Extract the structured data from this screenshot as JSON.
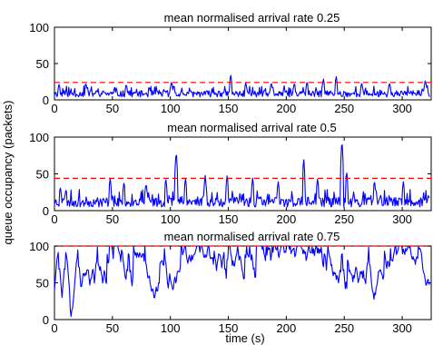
{
  "chart_data": [
    {
      "type": "line",
      "title": "mean normalised arrival rate 0.25",
      "xlabel": "",
      "ylabel": "",
      "xlim": [
        0,
        325
      ],
      "ylim": [
        0,
        100
      ],
      "xticks": [
        0,
        50,
        100,
        150,
        200,
        250,
        300
      ],
      "yticks": [
        0,
        50,
        100
      ],
      "series": [
        {
          "color": "#0000ff",
          "style": "noisy-queue-trace",
          "baseline": 4,
          "spread": 11,
          "sample_step": 0.65,
          "seed": 11,
          "spikes": [
            [
              4,
              22
            ],
            [
              27,
              24
            ],
            [
              62,
              22
            ],
            [
              101,
              26
            ],
            [
              103,
              21
            ],
            [
              152,
              35
            ],
            [
              165,
              24
            ],
            [
              187,
              24
            ],
            [
              207,
              24
            ],
            [
              218,
              26
            ],
            [
              232,
              29
            ],
            [
              243,
              33
            ],
            [
              265,
              24
            ],
            [
              289,
              24
            ],
            [
              320,
              28
            ]
          ]
        }
      ],
      "reference_line": {
        "y": 24,
        "color": "#ff0000",
        "style": "dashed"
      }
    },
    {
      "type": "line",
      "title": "mean normalised arrival rate 0.5",
      "xlabel": "",
      "ylabel": "",
      "xlim": [
        0,
        325
      ],
      "ylim": [
        0,
        100
      ],
      "xticks": [
        0,
        50,
        100,
        150,
        200,
        250,
        300
      ],
      "yticks": [
        0,
        50,
        100
      ],
      "series": [
        {
          "color": "#0000ff",
          "style": "noisy-queue-trace",
          "baseline": 5,
          "spread": 17,
          "sample_step": 0.65,
          "seed": 23,
          "spikes": [
            [
              5,
              33
            ],
            [
              10,
              30
            ],
            [
              48,
              45
            ],
            [
              60,
              40
            ],
            [
              79,
              38
            ],
            [
              96,
              45
            ],
            [
              105,
              84
            ],
            [
              113,
              45
            ],
            [
              130,
              48
            ],
            [
              149,
              50
            ],
            [
              171,
              45
            ],
            [
              193,
              40
            ],
            [
              215,
              73
            ],
            [
              227,
              45
            ],
            [
              248,
              100
            ],
            [
              252,
              55
            ],
            [
              276,
              42
            ],
            [
              301,
              40
            ]
          ]
        }
      ],
      "reference_line": {
        "y": 44,
        "color": "#ff0000",
        "style": "dashed"
      }
    },
    {
      "type": "line",
      "title": "mean normalised arrival rate 0.75",
      "xlabel": "time (s)",
      "ylabel": "",
      "xlim": [
        0,
        325
      ],
      "ylim": [
        0,
        100
      ],
      "xticks": [
        0,
        50,
        100,
        150,
        200,
        250,
        300
      ],
      "yticks": [
        0,
        50,
        100
      ],
      "series": [
        {
          "color": "#0000ff",
          "style": "saturating-queue-trace",
          "baseline": 30,
          "spread": 70,
          "sample_step": 0.65,
          "seed": 37,
          "spikes": [
            [
              3,
              100
            ],
            [
              10,
              100
            ],
            [
              20,
              100
            ],
            [
              37,
              100
            ],
            [
              58,
              100
            ],
            [
              64,
              100
            ],
            [
              78,
              100
            ],
            [
              95,
              100
            ],
            [
              110,
              100
            ],
            [
              138,
              100
            ],
            [
              142,
              100
            ],
            [
              146,
              100
            ],
            [
              166,
              100
            ],
            [
              186,
              100
            ],
            [
              190,
              100
            ],
            [
              215,
              100
            ],
            [
              233,
              100
            ],
            [
              248,
              100
            ],
            [
              271,
              100
            ],
            [
              290,
              100
            ],
            [
              300,
              100
            ],
            [
              307,
              100
            ]
          ]
        }
      ],
      "reference_line": {
        "y": 100,
        "color": "#ff0000",
        "style": "dashed"
      }
    }
  ],
  "shared": {
    "ylabel": "queue occupancy (packets)",
    "xlabel": "time (s)"
  }
}
